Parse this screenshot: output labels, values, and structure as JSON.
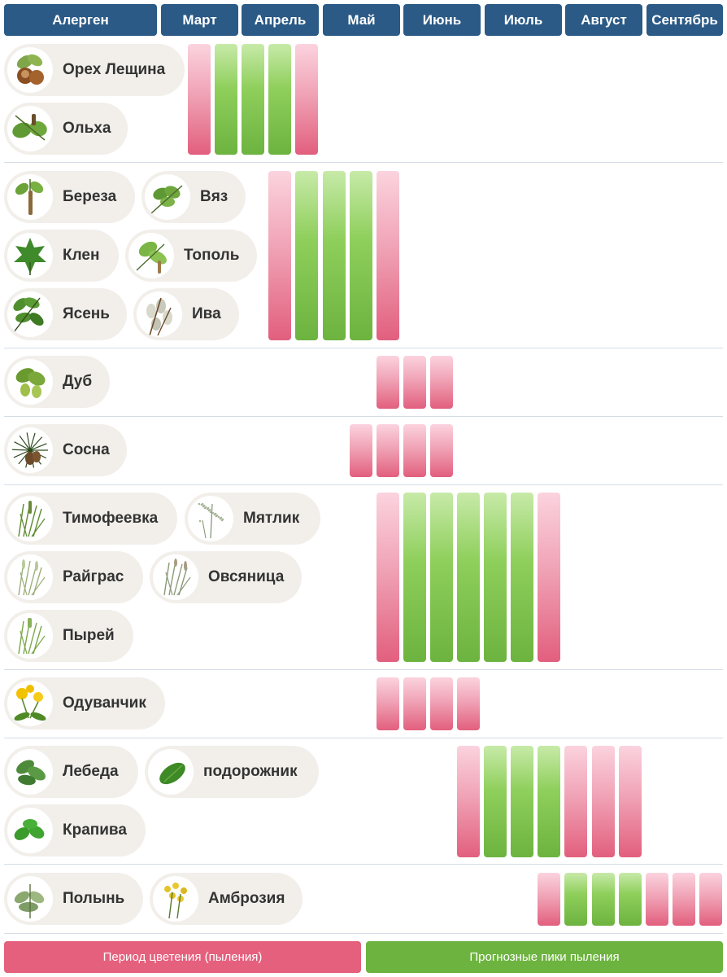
{
  "chart_data": {
    "type": "table",
    "columns": [
      "Алерген",
      "Март",
      "Апрель",
      "Май",
      "Июнь",
      "Июль",
      "Август",
      "Сентябрь"
    ],
    "groups": [
      {
        "allergens": [
          {
            "name": "Орех Лещина",
            "icon": "hazelnut-icon"
          },
          {
            "name": "Ольха",
            "icon": "alder-icon"
          }
        ],
        "bars": [
          "pink",
          "green",
          "green",
          "green",
          "pink"
        ],
        "start": 0
      },
      {
        "allergens": [
          {
            "name": "Береза",
            "icon": "birch-icon"
          },
          {
            "name": "Вяз",
            "icon": "elm-icon"
          },
          {
            "name": "Клен",
            "icon": "maple-icon"
          },
          {
            "name": "Тополь",
            "icon": "poplar-icon"
          },
          {
            "name": "Ясень",
            "icon": "ash-icon"
          },
          {
            "name": "Ива",
            "icon": "willow-icon"
          }
        ],
        "bars": [
          "pink",
          "green",
          "green",
          "green",
          "pink"
        ],
        "start": 3
      },
      {
        "allergens": [
          {
            "name": "Дуб",
            "icon": "oak-icon"
          }
        ],
        "bars": [
          "pink",
          "pink",
          "pink"
        ],
        "start": 7
      },
      {
        "allergens": [
          {
            "name": "Сосна",
            "icon": "pine-icon"
          }
        ],
        "bars": [
          "pink",
          "pink",
          "pink",
          "pink"
        ],
        "start": 6
      },
      {
        "allergens": [
          {
            "name": "Тимофеевка",
            "icon": "timothy-grass-icon"
          },
          {
            "name": "Мятлик",
            "icon": "bluegrass-icon"
          },
          {
            "name": "Райграс",
            "icon": "ryegrass-icon"
          },
          {
            "name": "Овсяница",
            "icon": "fescue-icon"
          },
          {
            "name": "Пырей",
            "icon": "couch-grass-icon"
          }
        ],
        "bars": [
          "pink",
          "green",
          "green",
          "green",
          "green",
          "green",
          "pink"
        ],
        "start": 7
      },
      {
        "allergens": [
          {
            "name": "Одуванчик",
            "icon": "dandelion-icon"
          }
        ],
        "bars": [
          "pink",
          "pink",
          "pink",
          "pink"
        ],
        "start": 7
      },
      {
        "allergens": [
          {
            "name": "Лебеда",
            "icon": "orache-icon"
          },
          {
            "name": "подорожник",
            "icon": "plantain-icon"
          },
          {
            "name": "Крапива",
            "icon": "nettle-icon"
          }
        ],
        "bars": [
          "pink",
          "green",
          "green",
          "green",
          "pink",
          "pink",
          "pink"
        ],
        "start": 10
      },
      {
        "allergens": [
          {
            "name": "Полынь",
            "icon": "wormwood-icon"
          },
          {
            "name": "Амброзия",
            "icon": "ragweed-icon"
          }
        ],
        "bars": [
          "pink",
          "green",
          "green",
          "green",
          "pink",
          "pink",
          "pink"
        ],
        "start": 13
      }
    ],
    "legend": [
      {
        "label": "Период цветения (пыления)",
        "color": "#e5607d",
        "key": "pink"
      },
      {
        "label": "Прогнозные пики пыления",
        "color": "#6db33f",
        "key": "green"
      }
    ]
  },
  "colors": {
    "header": "#2b5a86",
    "bloom_period": "#e5607d",
    "peak": "#6db33f"
  }
}
